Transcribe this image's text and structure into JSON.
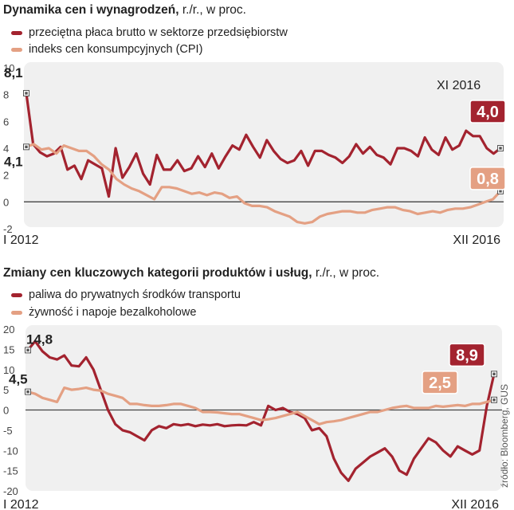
{
  "charts": [
    {
      "title_bold": "Dynamika cen i wynagrodzeń,",
      "title_unit": "r./r., w proc.",
      "xstart_label": "I 2012",
      "xend_label": "XII 2016",
      "period_label": "XI 2016",
      "start_values": [
        "8,1",
        "4,1"
      ],
      "end_values": [
        "4,0",
        "0,8"
      ]
    },
    {
      "title_bold": "Zmiany cen kluczowych kategorii produktów i usług,",
      "title_unit": "r./r., w proc.",
      "xstart_label": "I 2012",
      "xend_label": "XII 2016",
      "start_values": [
        "14,8",
        "4,5"
      ],
      "end_values": [
        "8,9",
        "2,5"
      ]
    }
  ],
  "source": "źródło: Bloomberg, GUS",
  "colors": {
    "series_dark": "#a3232f",
    "series_light": "#e4a083",
    "plot_bg": "#f0f0f0"
  },
  "chart_data": [
    {
      "type": "line",
      "title": "Dynamika cen i wynagrodzeń, r./r., w proc.",
      "ylim": [
        -2,
        10
      ],
      "yticks": [
        -2,
        0,
        2,
        4,
        6,
        8,
        10
      ],
      "series": [
        {
          "name": "przeciętna płaca brutto w sektorze przedsiębiorstw",
          "color": "#a3232f",
          "values": [
            8.1,
            4.3,
            3.7,
            3.4,
            3.6,
            4.1,
            2.4,
            2.7,
            1.7,
            3.1,
            2.8,
            2.5,
            0.4,
            4.0,
            1.8,
            2.6,
            3.6,
            2.1,
            1.3,
            3.5,
            2.4,
            2.4,
            3.1,
            2.3,
            2.5,
            3.4,
            2.6,
            3.6,
            2.5,
            3.4,
            4.2,
            3.9,
            5.0,
            4.1,
            3.3,
            4.6,
            3.8,
            3.2,
            2.9,
            3.1,
            3.8,
            2.7,
            3.8,
            3.8,
            3.5,
            3.3,
            2.9,
            3.4,
            4.3,
            3.6,
            4.1,
            3.5,
            3.3,
            2.8,
            4.0,
            4.0,
            3.8,
            3.4,
            4.8,
            3.9,
            3.5,
            4.8,
            3.9,
            4.2,
            5.3,
            4.9,
            4.9,
            4.0,
            3.6,
            4.0
          ]
        },
        {
          "name": "indeks cen konsumpcyjnych (CPI)",
          "color": "#e4a083",
          "values": [
            4.1,
            4.3,
            3.9,
            4.0,
            3.6,
            4.2,
            4.0,
            3.8,
            3.8,
            3.4,
            2.8,
            2.4,
            1.7,
            1.3,
            1.0,
            0.8,
            0.5,
            0.2,
            1.1,
            1.1,
            1.0,
            0.8,
            0.6,
            0.7,
            0.5,
            0.7,
            0.6,
            0.3,
            0.4,
            -0.1,
            -0.3,
            -0.3,
            -0.4,
            -0.7,
            -0.9,
            -1.1,
            -1.5,
            -1.6,
            -1.5,
            -1.1,
            -0.9,
            -0.8,
            -0.7,
            -0.7,
            -0.8,
            -0.8,
            -0.6,
            -0.5,
            -0.4,
            -0.4,
            -0.6,
            -0.7,
            -0.9,
            -0.8,
            -0.7,
            -0.8,
            -0.6,
            -0.5,
            -0.5,
            -0.4,
            -0.2,
            0.0,
            0.2,
            0.8
          ]
        }
      ]
    },
    {
      "type": "line",
      "title": "Zmiany cen kluczowych kategorii produktów i usług, r./r., w proc.",
      "ylim": [
        -20,
        20
      ],
      "yticks": [
        -20,
        -15,
        -10,
        -5,
        0,
        5,
        10,
        15,
        20
      ],
      "series": [
        {
          "name": "paliwa do prywatnych środków transportu",
          "color": "#a3232f",
          "values": [
            14.8,
            17.0,
            14.5,
            13.0,
            12.5,
            13.5,
            11.0,
            10.8,
            13.0,
            10.0,
            5.0,
            0.0,
            -3.5,
            -5.0,
            -5.5,
            -6.5,
            -7.5,
            -5.0,
            -4.0,
            -4.5,
            -3.5,
            -3.8,
            -3.5,
            -4.0,
            -3.6,
            -3.8,
            -3.5,
            -4.0,
            -3.8,
            -3.7,
            -3.8,
            -3.0,
            -3.8,
            1.0,
            0.0,
            0.5,
            -0.5,
            -1.0,
            -2.0,
            -5.0,
            -4.5,
            -6.5,
            -12.0,
            -15.5,
            -17.5,
            -14.5,
            -13.0,
            -11.5,
            -10.5,
            -9.5,
            -11.5,
            -15.0,
            -16.0,
            -12.0,
            -9.5,
            -7.0,
            -8.0,
            -10.0,
            -11.5,
            -9.0,
            -10.0,
            -11.0,
            -10.0,
            1.0,
            8.9
          ]
        },
        {
          "name": "żywność i napoje bezalkoholowe",
          "color": "#e4a083",
          "values": [
            4.5,
            4.0,
            3.0,
            2.5,
            2.0,
            5.5,
            5.0,
            5.2,
            5.5,
            5.0,
            4.8,
            4.0,
            3.5,
            3.0,
            1.5,
            1.5,
            1.2,
            1.0,
            1.0,
            1.2,
            1.5,
            1.5,
            1.0,
            0.5,
            -0.5,
            -0.5,
            -0.6,
            -0.8,
            -1.0,
            -1.0,
            -1.5,
            -2.0,
            -2.5,
            -2.3,
            -2.0,
            -1.5,
            -1.0,
            -0.5,
            -1.5,
            -2.5,
            -3.5,
            -3.0,
            -2.8,
            -2.5,
            -2.0,
            -1.5,
            -1.0,
            -0.5,
            -0.5,
            0.0,
            0.5,
            0.8,
            1.0,
            0.5,
            0.5,
            0.5,
            1.0,
            0.8,
            1.0,
            1.2,
            1.0,
            1.5,
            1.5,
            2.0,
            2.5
          ]
        }
      ]
    }
  ]
}
